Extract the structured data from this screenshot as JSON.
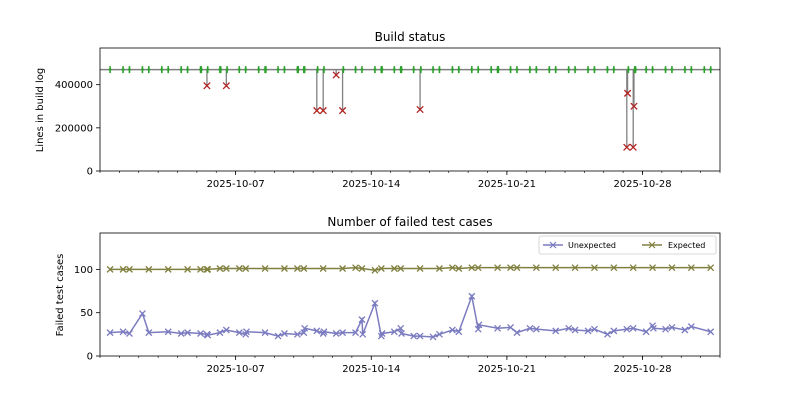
{
  "chart_data": [
    {
      "type": "line",
      "title": "Build status",
      "xlabel": "",
      "ylabel": "Lines in build log",
      "x_tick_labels": [
        "2025-10-07",
        "2025-10-14",
        "2025-10-21",
        "2025-10-28"
      ],
      "y_tick_labels": [
        "0",
        "200000",
        "400000"
      ],
      "y_ticks": [
        0,
        200000,
        400000
      ],
      "xlim": [
        "2025-09-30",
        "2025-11-01"
      ],
      "ylim": [
        0,
        570000
      ],
      "grid": false,
      "colors": {
        "line": "#808080",
        "success": "#2ca02c",
        "failure": "#b22222"
      },
      "baseline": 470000,
      "success_dates": [
        "2025-09-30",
        "2025-10-01",
        "2025-10-01",
        "2025-10-02",
        "2025-10-02",
        "2025-10-03",
        "2025-10-03",
        "2025-10-04",
        "2025-10-04",
        "2025-10-05",
        "2025-10-05",
        "2025-10-05",
        "2025-10-06",
        "2025-10-06",
        "2025-10-06",
        "2025-10-07",
        "2025-10-07",
        "2025-10-08",
        "2025-10-08",
        "2025-10-08",
        "2025-10-09",
        "2025-10-09",
        "2025-10-10",
        "2025-10-10",
        "2025-10-10",
        "2025-10-10",
        "2025-10-11",
        "2025-10-11",
        "2025-10-12",
        "2025-10-13",
        "2025-10-13",
        "2025-10-14",
        "2025-10-14",
        "2025-10-14",
        "2025-10-15",
        "2025-10-15",
        "2025-10-15",
        "2025-10-16",
        "2025-10-16",
        "2025-10-17",
        "2025-10-17",
        "2025-10-18",
        "2025-10-18",
        "2025-10-19",
        "2025-10-19",
        "2025-10-20",
        "2025-10-20",
        "2025-10-20",
        "2025-10-21",
        "2025-10-21",
        "2025-10-22",
        "2025-10-22",
        "2025-10-23",
        "2025-10-23",
        "2025-10-24",
        "2025-10-24",
        "2025-10-25",
        "2025-10-25",
        "2025-10-26",
        "2025-10-26",
        "2025-10-27",
        "2025-10-27",
        "2025-10-27",
        "2025-10-28",
        "2025-10-28",
        "2025-10-29",
        "2025-10-29",
        "2025-10-30",
        "2025-10-30",
        "2025-10-31",
        "2025-10-31"
      ],
      "failures": [
        {
          "x": "2025-10-05",
          "y": 395000
        },
        {
          "x": "2025-10-06",
          "y": 395000
        },
        {
          "x": "2025-10-11",
          "y": 280000
        },
        {
          "x": "2025-10-11",
          "y": 280000
        },
        {
          "x": "2025-10-12",
          "y": 280000
        },
        {
          "x": "2025-10-12",
          "y": 445000
        },
        {
          "x": "2025-10-16",
          "y": 285000
        },
        {
          "x": "2025-10-27",
          "y": 110000
        },
        {
          "x": "2025-10-27",
          "y": 110000
        },
        {
          "x": "2025-10-27",
          "y": 300000
        },
        {
          "x": "2025-10-27",
          "y": 360000
        }
      ]
    },
    {
      "type": "line",
      "title": "Number of failed test cases",
      "xlabel": "",
      "ylabel": "Failed test cases",
      "x_tick_labels": [
        "2025-10-07",
        "2025-10-14",
        "2025-10-21",
        "2025-10-28"
      ],
      "y_tick_labels": [
        "0",
        "50",
        "100"
      ],
      "y_ticks": [
        0,
        50,
        100
      ],
      "xlim": [
        "2025-09-30",
        "2025-11-01"
      ],
      "ylim": [
        0,
        142
      ],
      "grid": false,
      "legend": "top-right",
      "series": [
        {
          "name": "Unexpected",
          "color": "#7b7bc0",
          "points": [
            {
              "x": "2025-09-30",
              "y": 27
            },
            {
              "x": "2025-10-01",
              "y": 26
            },
            {
              "x": "2025-10-01",
              "y": 28
            },
            {
              "x": "2025-10-02",
              "y": 27
            },
            {
              "x": "2025-10-02",
              "y": 49
            },
            {
              "x": "2025-10-03",
              "y": 28
            },
            {
              "x": "2025-10-04",
              "y": 27
            },
            {
              "x": "2025-10-04",
              "y": 26
            },
            {
              "x": "2025-10-05",
              "y": 25
            },
            {
              "x": "2025-10-05",
              "y": 26
            },
            {
              "x": "2025-10-05",
              "y": 24
            },
            {
              "x": "2025-10-06",
              "y": 30
            },
            {
              "x": "2025-10-06",
              "y": 27
            },
            {
              "x": "2025-10-07",
              "y": 25
            },
            {
              "x": "2025-10-07",
              "y": 27
            },
            {
              "x": "2025-10-07",
              "y": 28
            },
            {
              "x": "2025-10-08",
              "y": 27
            },
            {
              "x": "2025-10-09",
              "y": 26
            },
            {
              "x": "2025-10-09",
              "y": 23
            },
            {
              "x": "2025-10-10",
              "y": 27
            },
            {
              "x": "2025-10-10",
              "y": 25
            },
            {
              "x": "2025-10-10",
              "y": 32
            },
            {
              "x": "2025-10-11",
              "y": 26
            },
            {
              "x": "2025-10-11",
              "y": 29
            },
            {
              "x": "2025-10-11",
              "y": 28
            },
            {
              "x": "2025-10-12",
              "y": 27
            },
            {
              "x": "2025-10-12",
              "y": 26
            },
            {
              "x": "2025-10-13",
              "y": 42
            },
            {
              "x": "2025-10-13",
              "y": 27
            },
            {
              "x": "2025-10-13",
              "y": 25
            },
            {
              "x": "2025-10-14",
              "y": 23
            },
            {
              "x": "2025-10-14",
              "y": 61
            },
            {
              "x": "2025-10-14",
              "y": 26
            },
            {
              "x": "2025-10-15",
              "y": 32
            },
            {
              "x": "2025-10-15",
              "y": 28
            },
            {
              "x": "2025-10-15",
              "y": 26
            },
            {
              "x": "2025-10-16",
              "y": 23
            },
            {
              "x": "2025-10-16",
              "y": 23
            },
            {
              "x": "2025-10-17",
              "y": 25
            },
            {
              "x": "2025-10-17",
              "y": 22
            },
            {
              "x": "2025-10-18",
              "y": 28
            },
            {
              "x": "2025-10-18",
              "y": 30
            },
            {
              "x": "2025-10-19",
              "y": 31
            },
            {
              "x": "2025-10-19",
              "y": 69
            },
            {
              "x": "2025-10-19",
              "y": 36
            },
            {
              "x": "2025-10-20",
              "y": 32
            },
            {
              "x": "2025-10-21",
              "y": 27
            },
            {
              "x": "2025-10-21",
              "y": 33
            },
            {
              "x": "2025-10-22",
              "y": 31
            },
            {
              "x": "2025-10-22",
              "y": 32
            },
            {
              "x": "2025-10-23",
              "y": 29
            },
            {
              "x": "2025-10-24",
              "y": 30
            },
            {
              "x": "2025-10-24",
              "y": 32
            },
            {
              "x": "2025-10-25",
              "y": 31
            },
            {
              "x": "2025-10-25",
              "y": 29
            },
            {
              "x": "2025-10-26",
              "y": 29
            },
            {
              "x": "2025-10-26",
              "y": 25
            },
            {
              "x": "2025-10-27",
              "y": 32
            },
            {
              "x": "2025-10-27",
              "y": 31
            },
            {
              "x": "2025-10-28",
              "y": 35
            },
            {
              "x": "2025-10-28",
              "y": 28
            },
            {
              "x": "2025-10-28",
              "y": 32
            },
            {
              "x": "2025-10-29",
              "y": 33
            },
            {
              "x": "2025-10-29",
              "y": 31
            },
            {
              "x": "2025-10-30",
              "y": 34
            },
            {
              "x": "2025-10-30",
              "y": 30
            },
            {
              "x": "2025-10-31",
              "y": 28
            }
          ]
        },
        {
          "name": "Expected",
          "color": "#808040",
          "points": [
            {
              "x": "2025-09-30",
              "y": 100
            },
            {
              "x": "2025-10-01",
              "y": 100
            },
            {
              "x": "2025-10-01",
              "y": 100
            },
            {
              "x": "2025-10-02",
              "y": 100
            },
            {
              "x": "2025-10-03",
              "y": 100
            },
            {
              "x": "2025-10-04",
              "y": 100
            },
            {
              "x": "2025-10-05",
              "y": 100
            },
            {
              "x": "2025-10-05",
              "y": 100
            },
            {
              "x": "2025-10-05",
              "y": 100
            },
            {
              "x": "2025-10-06",
              "y": 101
            },
            {
              "x": "2025-10-06",
              "y": 101
            },
            {
              "x": "2025-10-07",
              "y": 101
            },
            {
              "x": "2025-10-07",
              "y": 101
            },
            {
              "x": "2025-10-08",
              "y": 101
            },
            {
              "x": "2025-10-09",
              "y": 101
            },
            {
              "x": "2025-10-10",
              "y": 101
            },
            {
              "x": "2025-10-10",
              "y": 101
            },
            {
              "x": "2025-10-11",
              "y": 101
            },
            {
              "x": "2025-10-12",
              "y": 101
            },
            {
              "x": "2025-10-13",
              "y": 101
            },
            {
              "x": "2025-10-13",
              "y": 102
            },
            {
              "x": "2025-10-14",
              "y": 101
            },
            {
              "x": "2025-10-14",
              "y": 99
            },
            {
              "x": "2025-10-15",
              "y": 101
            },
            {
              "x": "2025-10-15",
              "y": 101
            },
            {
              "x": "2025-10-16",
              "y": 101
            },
            {
              "x": "2025-10-17",
              "y": 101
            },
            {
              "x": "2025-10-18",
              "y": 101
            },
            {
              "x": "2025-10-18",
              "y": 102
            },
            {
              "x": "2025-10-19",
              "y": 102
            },
            {
              "x": "2025-10-19",
              "y": 102
            },
            {
              "x": "2025-10-20",
              "y": 102
            },
            {
              "x": "2025-10-21",
              "y": 102
            },
            {
              "x": "2025-10-21",
              "y": 102
            },
            {
              "x": "2025-10-22",
              "y": 102
            },
            {
              "x": "2025-10-23",
              "y": 102
            },
            {
              "x": "2025-10-24",
              "y": 102
            },
            {
              "x": "2025-10-25",
              "y": 102
            },
            {
              "x": "2025-10-26",
              "y": 102
            },
            {
              "x": "2025-10-27",
              "y": 102
            },
            {
              "x": "2025-10-28",
              "y": 102
            },
            {
              "x": "2025-10-29",
              "y": 102
            },
            {
              "x": "2025-10-30",
              "y": 102
            },
            {
              "x": "2025-10-31",
              "y": 102
            }
          ]
        }
      ]
    }
  ]
}
